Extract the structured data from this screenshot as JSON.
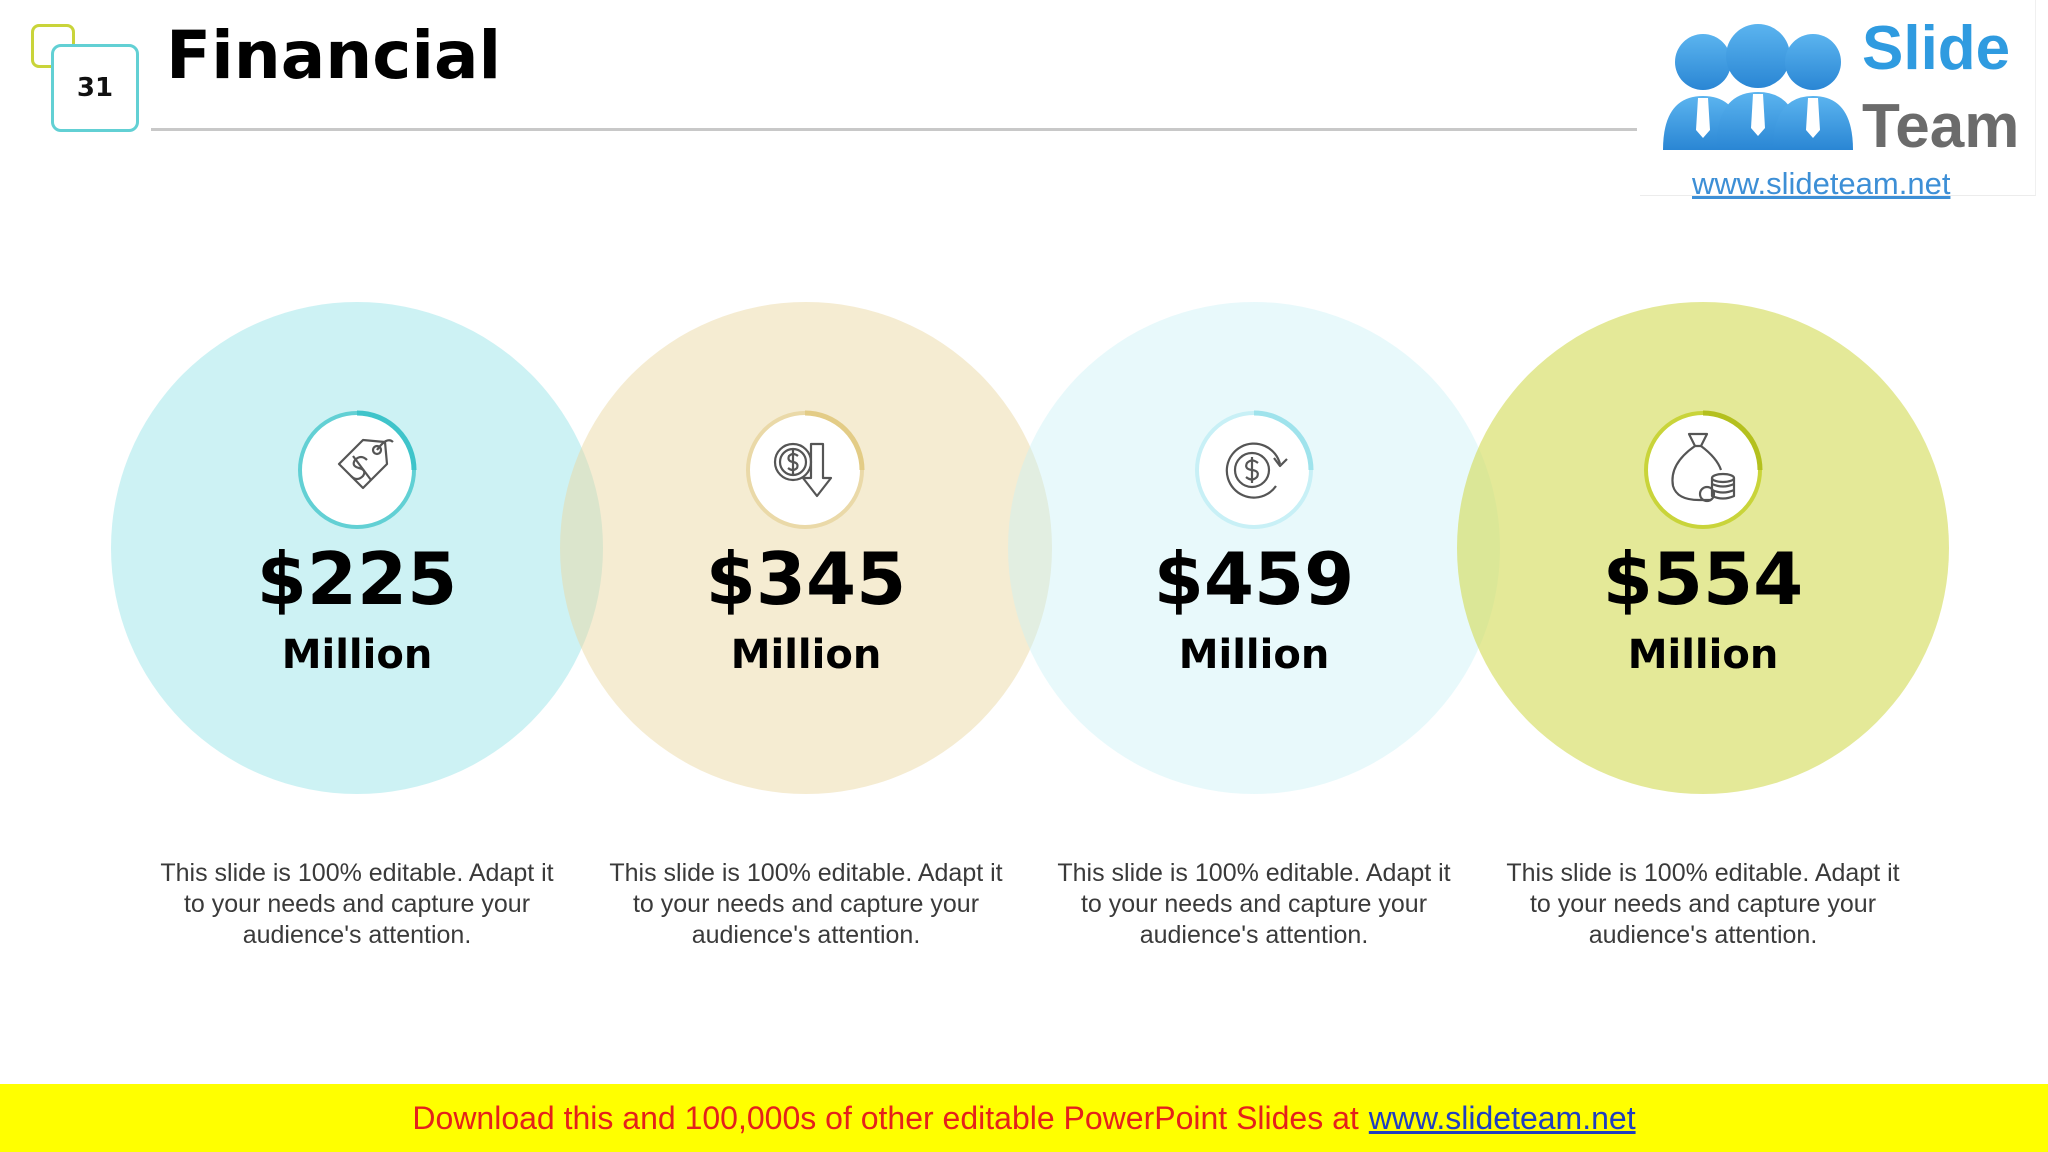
{
  "slide": {
    "number": "31",
    "title": "Financial"
  },
  "logo": {
    "word1": "Slide",
    "word2": "Team",
    "url": "www.slideteam.net"
  },
  "stats": [
    {
      "value": "$225",
      "unit": "Million",
      "icon": "price-tag-dollar-icon",
      "text": "This slide is 100% editable. Adapt it to your needs and capture your audience's attention."
    },
    {
      "value": "$345",
      "unit": "Million",
      "icon": "coin-down-arrow-icon",
      "text": "This slide is 100% editable. Adapt it to your needs and capture your audience's attention."
    },
    {
      "value": "$459",
      "unit": "Million",
      "icon": "dollar-cycle-icon",
      "text": "This slide is 100% editable. Adapt it to your needs and capture your audience's attention."
    },
    {
      "value": "$554",
      "unit": "Million",
      "icon": "money-bag-coins-icon",
      "text": "This slide is 100% editable. Adapt it to your needs and capture your audience's attention."
    }
  ],
  "footer": {
    "text": "Download this and 100,000s of other editable PowerPoint Slides at",
    "link": "www.slideteam.net"
  },
  "colors": {
    "teal": "#62d0d4",
    "sand": "#ead9a8",
    "ice": "#c8f0f6",
    "lime": "#c9d43a",
    "footer_bg": "#ffff00",
    "footer_text": "#e4211b"
  }
}
